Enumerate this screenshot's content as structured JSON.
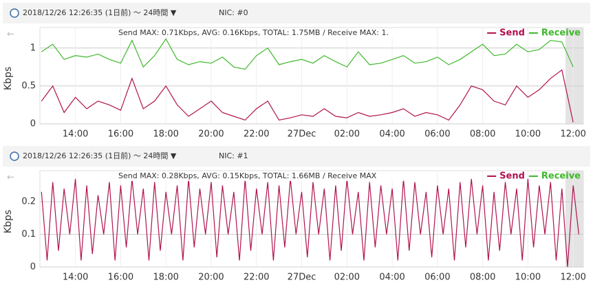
{
  "chart_data": [
    {
      "type": "line",
      "range_label": "2018/12/26 12:26:35 (1日前) 〜 24時間 ▼",
      "nic": "NIC: #0",
      "summary": "Send MAX: 0.71Kbps, AVG: 0.16Kbps, TOTAL: 1.75MB / Receive MAX: 1.",
      "y_label": "Kbps",
      "x": [
        12.5,
        13,
        13.5,
        14,
        14.5,
        15,
        15.5,
        16,
        16.5,
        17,
        17.5,
        18,
        18.5,
        19,
        19.5,
        20,
        20.5,
        21,
        21.5,
        22,
        22.5,
        23,
        23.5,
        24,
        24.5,
        25,
        25.5,
        26,
        26.5,
        27,
        27.5,
        28,
        28.5,
        29,
        29.5,
        30,
        30.5,
        31,
        31.5,
        32,
        32.5,
        33,
        33.5,
        34,
        34.5,
        35,
        35.5,
        36
      ],
      "series": [
        {
          "name": "Send",
          "color": "#b0124e",
          "values": [
            0.3,
            0.5,
            0.15,
            0.35,
            0.2,
            0.3,
            0.25,
            0.18,
            0.6,
            0.2,
            0.3,
            0.5,
            0.25,
            0.1,
            0.2,
            0.3,
            0.15,
            0.1,
            0.05,
            0.2,
            0.3,
            0.05,
            0.08,
            0.12,
            0.1,
            0.2,
            0.1,
            0.08,
            0.15,
            0.1,
            0.12,
            0.15,
            0.2,
            0.1,
            0.15,
            0.12,
            0.05,
            0.25,
            0.5,
            0.45,
            0.3,
            0.25,
            0.5,
            0.35,
            0.45,
            0.6,
            0.71,
            0.02
          ]
        },
        {
          "name": "Receive",
          "color": "#3db829",
          "values": [
            0.95,
            1.05,
            0.85,
            0.9,
            0.88,
            0.92,
            0.85,
            0.8,
            1.1,
            0.75,
            0.9,
            1.12,
            0.85,
            0.78,
            0.82,
            0.8,
            0.88,
            0.75,
            0.72,
            0.9,
            1.0,
            0.78,
            0.82,
            0.85,
            0.8,
            0.9,
            0.82,
            0.75,
            0.95,
            0.78,
            0.8,
            0.85,
            0.9,
            0.8,
            0.82,
            0.88,
            0.78,
            0.85,
            0.95,
            1.05,
            0.9,
            0.92,
            1.05,
            0.95,
            0.98,
            1.1,
            1.08,
            0.75
          ]
        }
      ],
      "xlim": [
        12.43,
        36.45
      ],
      "ylim": [
        0,
        1.27
      ],
      "xticks": [
        {
          "value": 14,
          "label": "14:00"
        },
        {
          "value": 16,
          "label": "16:00"
        },
        {
          "value": 18,
          "label": "18:00"
        },
        {
          "value": 20,
          "label": "20:00"
        },
        {
          "value": 22,
          "label": "22:00"
        },
        {
          "value": 24,
          "label": "27Dec"
        },
        {
          "value": 26,
          "label": "02:00"
        },
        {
          "value": 28,
          "label": "04:00"
        },
        {
          "value": 30,
          "label": "06:00"
        },
        {
          "value": 32,
          "label": "08:00"
        },
        {
          "value": 34,
          "label": "10:00"
        },
        {
          "value": 36,
          "label": "12:00"
        }
      ],
      "yticks": [
        0,
        0.5,
        1
      ],
      "grid": true
    },
    {
      "type": "line",
      "range_label": "2018/12/26 12:26:35 (1日前) 〜 24時間 ▼",
      "nic": "NIC: #1",
      "summary": "Send MAX: 0.28Kbps, AVG: 0.15Kbps, TOTAL: 1.66MB / Receive MAX",
      "y_label": "Kbps",
      "x": [
        12.5,
        12.75,
        13,
        13.25,
        13.5,
        13.75,
        14,
        14.25,
        14.5,
        14.75,
        15,
        15.25,
        15.5,
        15.75,
        16,
        16.25,
        16.5,
        16.75,
        17,
        17.25,
        17.5,
        17.75,
        18,
        18.25,
        18.5,
        18.75,
        19,
        19.25,
        19.5,
        19.75,
        20,
        20.25,
        20.5,
        20.75,
        21,
        21.25,
        21.5,
        21.75,
        22,
        22.25,
        22.5,
        22.75,
        23,
        23.25,
        23.5,
        23.75,
        24,
        24.25,
        24.5,
        24.75,
        25,
        25.25,
        25.5,
        25.75,
        26,
        26.25,
        26.5,
        26.75,
        27,
        27.25,
        27.5,
        27.75,
        28,
        28.25,
        28.5,
        28.75,
        29,
        29.25,
        29.5,
        29.75,
        30,
        30.25,
        30.5,
        30.75,
        31,
        31.25,
        31.5,
        31.75,
        32,
        32.25,
        32.5,
        32.75,
        33,
        33.25,
        33.5,
        33.75,
        34,
        34.25,
        34.5,
        34.75,
        35,
        35.25,
        35.5,
        35.75,
        36,
        36.25
      ],
      "series": [
        {
          "name": "Send",
          "color": "#b0124e",
          "values": [
            0.23,
            0.02,
            0.26,
            0.05,
            0.24,
            0.1,
            0.27,
            0.02,
            0.25,
            0.04,
            0.22,
            0.1,
            0.26,
            0.02,
            0.25,
            0.06,
            0.27,
            0.1,
            0.24,
            0.02,
            0.26,
            0.05,
            0.23,
            0.1,
            0.25,
            0.02,
            0.27,
            0.06,
            0.24,
            0.1,
            0.26,
            0.03,
            0.25,
            0.1,
            0.23,
            0.02,
            0.27,
            0.05,
            0.24,
            0.1,
            0.26,
            0.02,
            0.25,
            0.06,
            0.27,
            0.1,
            0.23,
            0.03,
            0.26,
            0.1,
            0.24,
            0.02,
            0.25,
            0.05,
            0.27,
            0.1,
            0.23,
            0.02,
            0.26,
            0.06,
            0.25,
            0.1,
            0.24,
            0.02,
            0.27,
            0.05,
            0.26,
            0.1,
            0.23,
            0.03,
            0.25,
            0.1,
            0.24,
            0.02,
            0.26,
            0.06,
            0.27,
            0.1,
            0.25,
            0.02,
            0.23,
            0.05,
            0.26,
            0.1,
            0.24,
            0.02,
            0.27,
            0.06,
            0.25,
            0.1,
            0.26,
            0.02,
            0.24,
            0.0,
            0.25,
            0.1
          ]
        },
        {
          "name": "Receive",
          "color": "#3db829"
        }
      ],
      "xlim": [
        12.43,
        36.45
      ],
      "ylim": [
        0,
        0.295
      ],
      "xticks": [
        {
          "value": 14,
          "label": "14:00"
        },
        {
          "value": 16,
          "label": "16:00"
        },
        {
          "value": 18,
          "label": "18:00"
        },
        {
          "value": 20,
          "label": "20:00"
        },
        {
          "value": 22,
          "label": "22:00"
        },
        {
          "value": 24,
          "label": "27Dec"
        },
        {
          "value": 26,
          "label": "02:00"
        },
        {
          "value": 28,
          "label": "04:00"
        },
        {
          "value": 30,
          "label": "06:00"
        },
        {
          "value": 32,
          "label": "08:00"
        },
        {
          "value": 34,
          "label": "10:00"
        },
        {
          "value": 36,
          "label": "12:00"
        }
      ],
      "yticks": [
        0,
        0.1,
        0.2
      ],
      "grid": true
    }
  ]
}
